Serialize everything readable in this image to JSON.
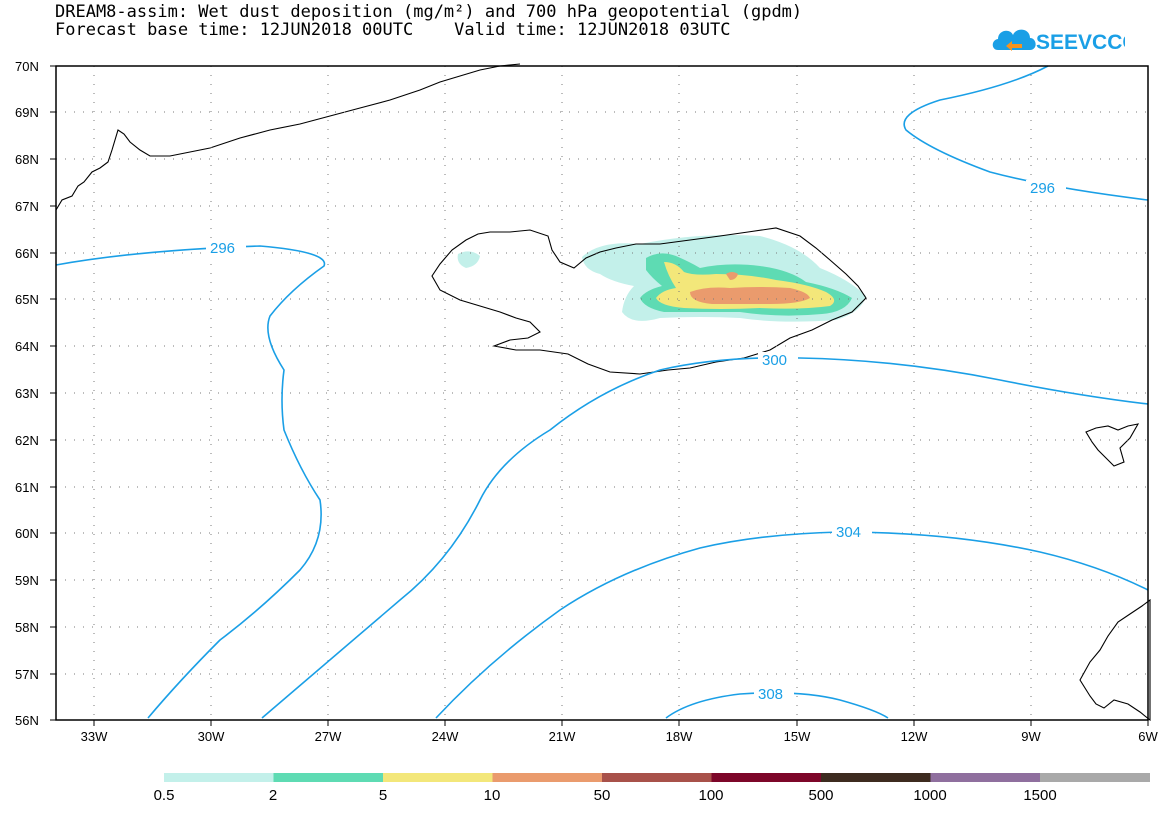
{
  "title_line1": "DREAM8-assim: Wet dust deposition (mg/m²) and 700 hPa geopotential (gpdm)",
  "title_line2": "Forecast base time: 12JUN2018 00UTC    Valid time: 12JUN2018 03UTC",
  "logo_text": "SEEVCCC",
  "lat_labels": [
    "70N",
    "69N",
    "68N",
    "67N",
    "66N",
    "65N",
    "64N",
    "63N",
    "62N",
    "61N",
    "60N",
    "59N",
    "58N",
    "57N",
    "56N"
  ],
  "lon_labels": [
    "33W",
    "30W",
    "27W",
    "24W",
    "21W",
    "18W",
    "15W",
    "12W",
    "9W",
    "6W"
  ],
  "contour_labels": [
    "296",
    "296",
    "300",
    "304",
    "308"
  ],
  "colorbar": {
    "ticks": [
      "0.5",
      "2",
      "5",
      "10",
      "50",
      "100",
      "500",
      "1000",
      "1500"
    ],
    "colors": [
      "#c3f0ea",
      "#5edbb3",
      "#f3e77a",
      "#ea9b6d",
      "#a8514a",
      "#7d0629",
      "#3d2b1f",
      "#8f6f9e",
      "#a9a9a9"
    ]
  },
  "colors": {
    "contour": "#1a9fe6",
    "coast": "#000000"
  }
}
